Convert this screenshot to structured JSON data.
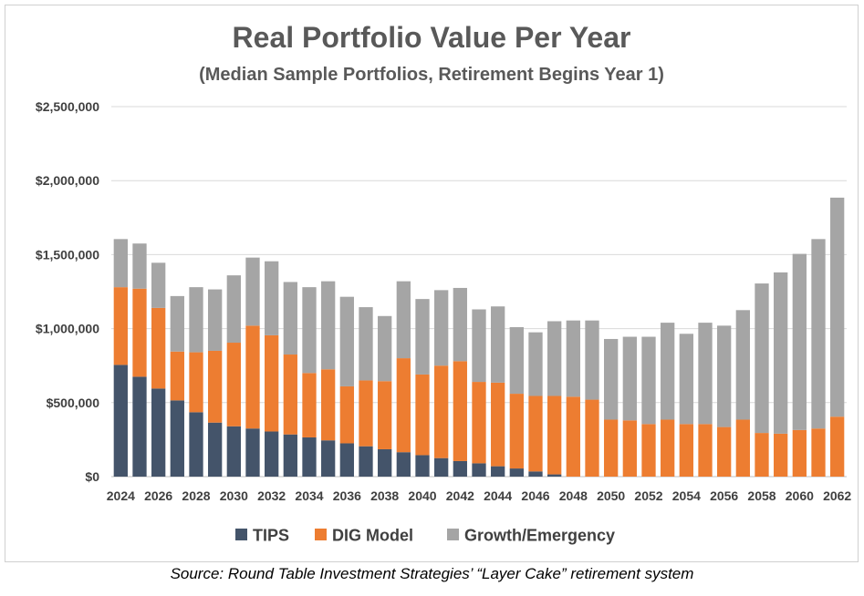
{
  "source_note": "Source: Round Table Investment Strategies’ “Layer Cake” retirement system",
  "colors": {
    "tips": "#44546a",
    "dig": "#ed7d31",
    "growth": "#a5a5a5",
    "title": "#595959",
    "axis_text": "#404040",
    "grid": "#d9d9d9"
  },
  "chart_data": {
    "type": "bar",
    "stacked": true,
    "title": "Real Portfolio Value Per Year",
    "subtitle": "(Median Sample Portfolios, Retirement Begins Year 1)",
    "xlabel": "",
    "ylabel": "",
    "ylim": [
      0,
      2500000
    ],
    "yticks": [
      0,
      500000,
      1000000,
      1500000,
      2000000,
      2500000
    ],
    "ytick_labels": [
      "$0",
      "$500,000",
      "$1,000,000",
      "$1,500,000",
      "$2,000,000",
      "$2,500,000"
    ],
    "grid": true,
    "legend_position": "bottom",
    "categories": [
      "2024",
      "2025",
      "2026",
      "2027",
      "2028",
      "2029",
      "2030",
      "2031",
      "2032",
      "2033",
      "2034",
      "2035",
      "2036",
      "2037",
      "2038",
      "2039",
      "2040",
      "2041",
      "2042",
      "2043",
      "2044",
      "2045",
      "2046",
      "2047",
      "2048",
      "2049",
      "2050",
      "2051",
      "2052",
      "2053",
      "2054",
      "2055",
      "2056",
      "2057",
      "2058",
      "2059",
      "2060",
      "2061",
      "2062"
    ],
    "xtick_labels": [
      "2024",
      "",
      "2026",
      "",
      "2028",
      "",
      "2030",
      "",
      "2032",
      "",
      "2034",
      "",
      "2036",
      "",
      "2038",
      "",
      "2040",
      "",
      "2042",
      "",
      "2044",
      "",
      "2046",
      "",
      "2048",
      "",
      "2050",
      "",
      "2052",
      "",
      "2054",
      "",
      "2056",
      "",
      "2058",
      "",
      "2060",
      "",
      "2062"
    ],
    "series": [
      {
        "name": "TIPS",
        "values": [
          755000,
          675000,
          595000,
          515000,
          435000,
          365000,
          340000,
          325000,
          305000,
          285000,
          265000,
          245000,
          225000,
          205000,
          185000,
          165000,
          145000,
          125000,
          105000,
          90000,
          70000,
          55000,
          35000,
          15000,
          0,
          0,
          0,
          0,
          0,
          0,
          0,
          0,
          0,
          0,
          0,
          0,
          0,
          0,
          0
        ]
      },
      {
        "name": "DIG Model",
        "values": [
          525000,
          595000,
          545000,
          330000,
          405000,
          485000,
          565000,
          695000,
          650000,
          540000,
          435000,
          480000,
          385000,
          445000,
          460000,
          635000,
          545000,
          625000,
          675000,
          550000,
          565000,
          505000,
          510000,
          530000,
          540000,
          520000,
          385000,
          380000,
          355000,
          385000,
          355000,
          355000,
          335000,
          385000,
          295000,
          290000,
          315000,
          325000,
          405000
        ]
      },
      {
        "name": "Growth/Emergency",
        "values": [
          325000,
          305000,
          305000,
          375000,
          440000,
          415000,
          455000,
          460000,
          500000,
          490000,
          580000,
          595000,
          605000,
          495000,
          440000,
          520000,
          510000,
          510000,
          495000,
          490000,
          515000,
          450000,
          430000,
          505000,
          515000,
          535000,
          545000,
          565000,
          590000,
          655000,
          610000,
          685000,
          685000,
          740000,
          1010000,
          1090000,
          1190000,
          1280000,
          1480000
        ]
      }
    ]
  }
}
